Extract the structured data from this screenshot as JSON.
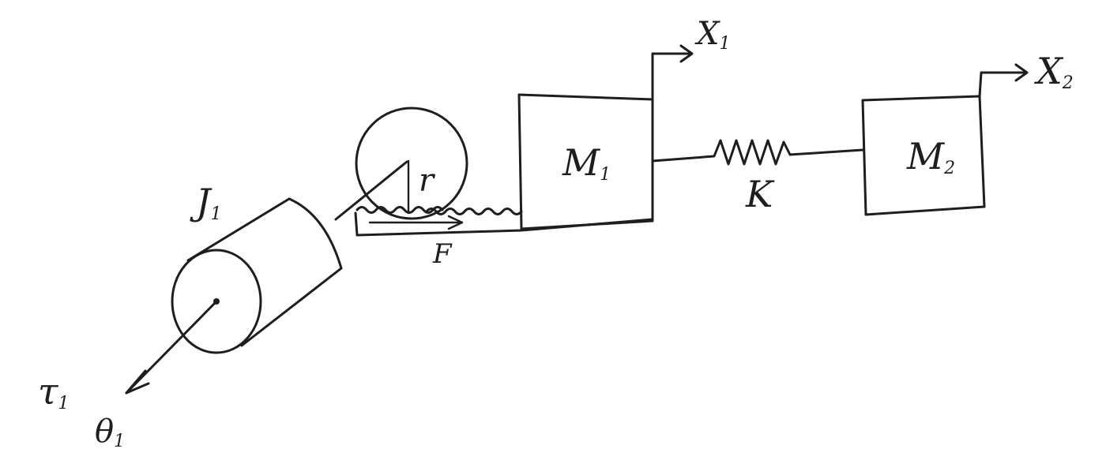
{
  "labels": {
    "inertia": {
      "main": "J",
      "sub": "1"
    },
    "radius": "r",
    "force": "F",
    "mass1": {
      "main": "M",
      "sub": "1"
    },
    "mass2": {
      "main": "M",
      "sub": "2"
    },
    "spring": "K",
    "x1": {
      "main": "X",
      "sub": "1"
    },
    "x2": {
      "main": "X",
      "sub": "2"
    },
    "torque": {
      "main": "τ",
      "sub": "1"
    },
    "angle": {
      "main": "θ",
      "sub": "1"
    }
  },
  "colors": {
    "ink": "#1e1e1e",
    "paper": "#ffffff"
  }
}
